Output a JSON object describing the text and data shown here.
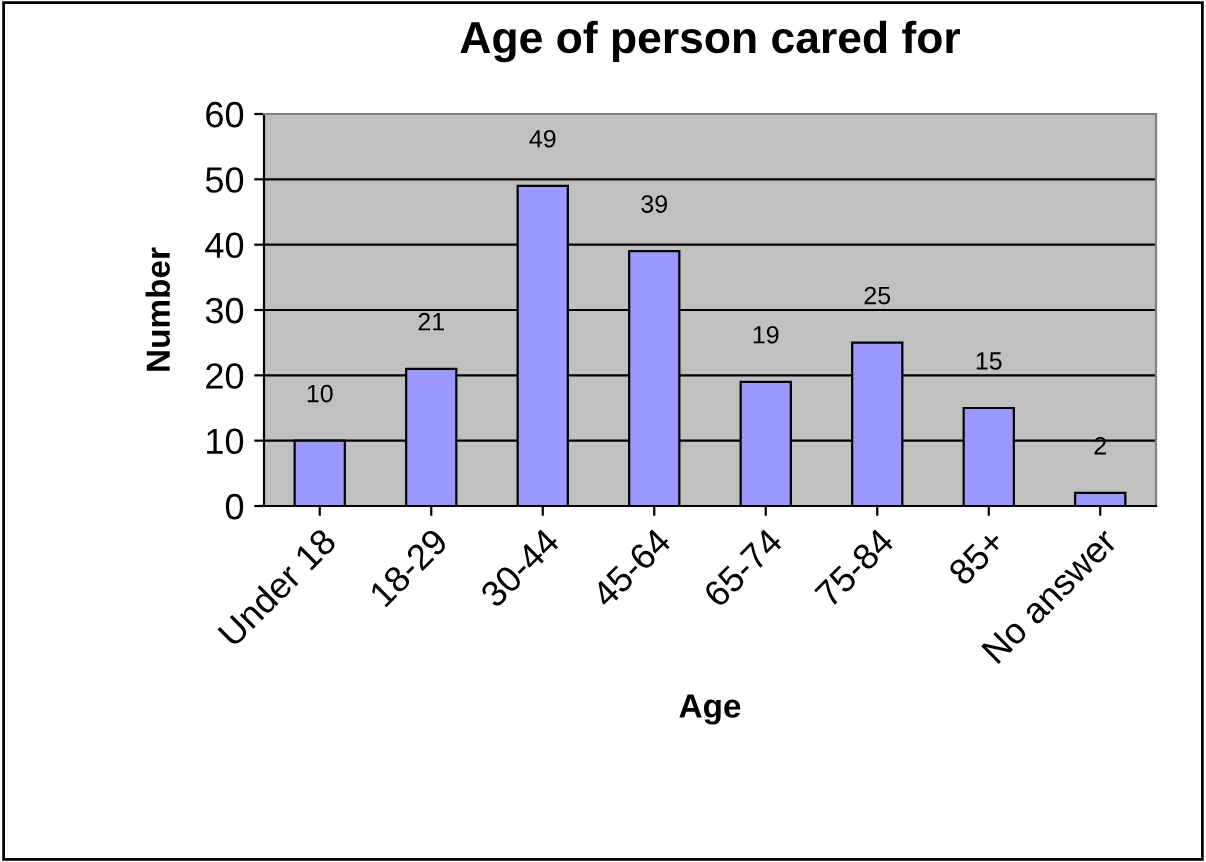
{
  "chart_data": {
    "type": "bar",
    "title": "Age of person cared for",
    "xlabel": "Age",
    "ylabel": "Number",
    "categories": [
      "Under 18",
      "18-29",
      "30-44",
      "45-64",
      "65-74",
      "75-84",
      "85+",
      "No answer"
    ],
    "values": [
      10,
      21,
      49,
      39,
      19,
      25,
      15,
      2
    ],
    "color": "#9999ff",
    "data_labels": true,
    "ylim": [
      0,
      60
    ],
    "yticks": [
      0,
      10,
      20,
      30,
      40,
      50,
      60
    ],
    "grid": "y",
    "legend": false
  }
}
